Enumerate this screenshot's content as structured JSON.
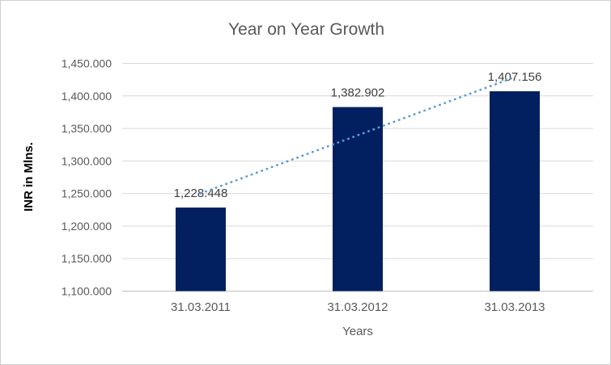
{
  "chart": {
    "colors": {
      "bar": "#022060",
      "trendline": "#5b9bd5",
      "gridline": "#d9d9d9",
      "axis_line": "#bfbfbf",
      "tick_text": "#595959",
      "data_label_text": "#3f3f3f",
      "title_text": "#595959",
      "border": "#d0cece"
    }
  },
  "chart_data": {
    "type": "bar",
    "title": "Year on Year Growth",
    "xlabel": "Years",
    "ylabel": "INR in Mlns.",
    "categories": [
      "31.03.2011",
      "31.03.2012",
      "31.03.2013"
    ],
    "values": [
      1228.448,
      1382.902,
      1407.156
    ],
    "value_labels": [
      "1,228.448",
      "1,382.902",
      "1,407.156"
    ],
    "ylim": [
      1100,
      1450
    ],
    "ytick_step": 50,
    "ytick_labels": [
      "1,450.000",
      "1,400.000",
      "1,350.000",
      "1,300.000",
      "1,250.000",
      "1,200.000",
      "1,150.000",
      "1,100.000"
    ],
    "grid": true,
    "legend": false,
    "trendline": {
      "type": "linear",
      "style": "dotted",
      "start_value": 1250.148,
      "end_value": 1428.856
    }
  }
}
